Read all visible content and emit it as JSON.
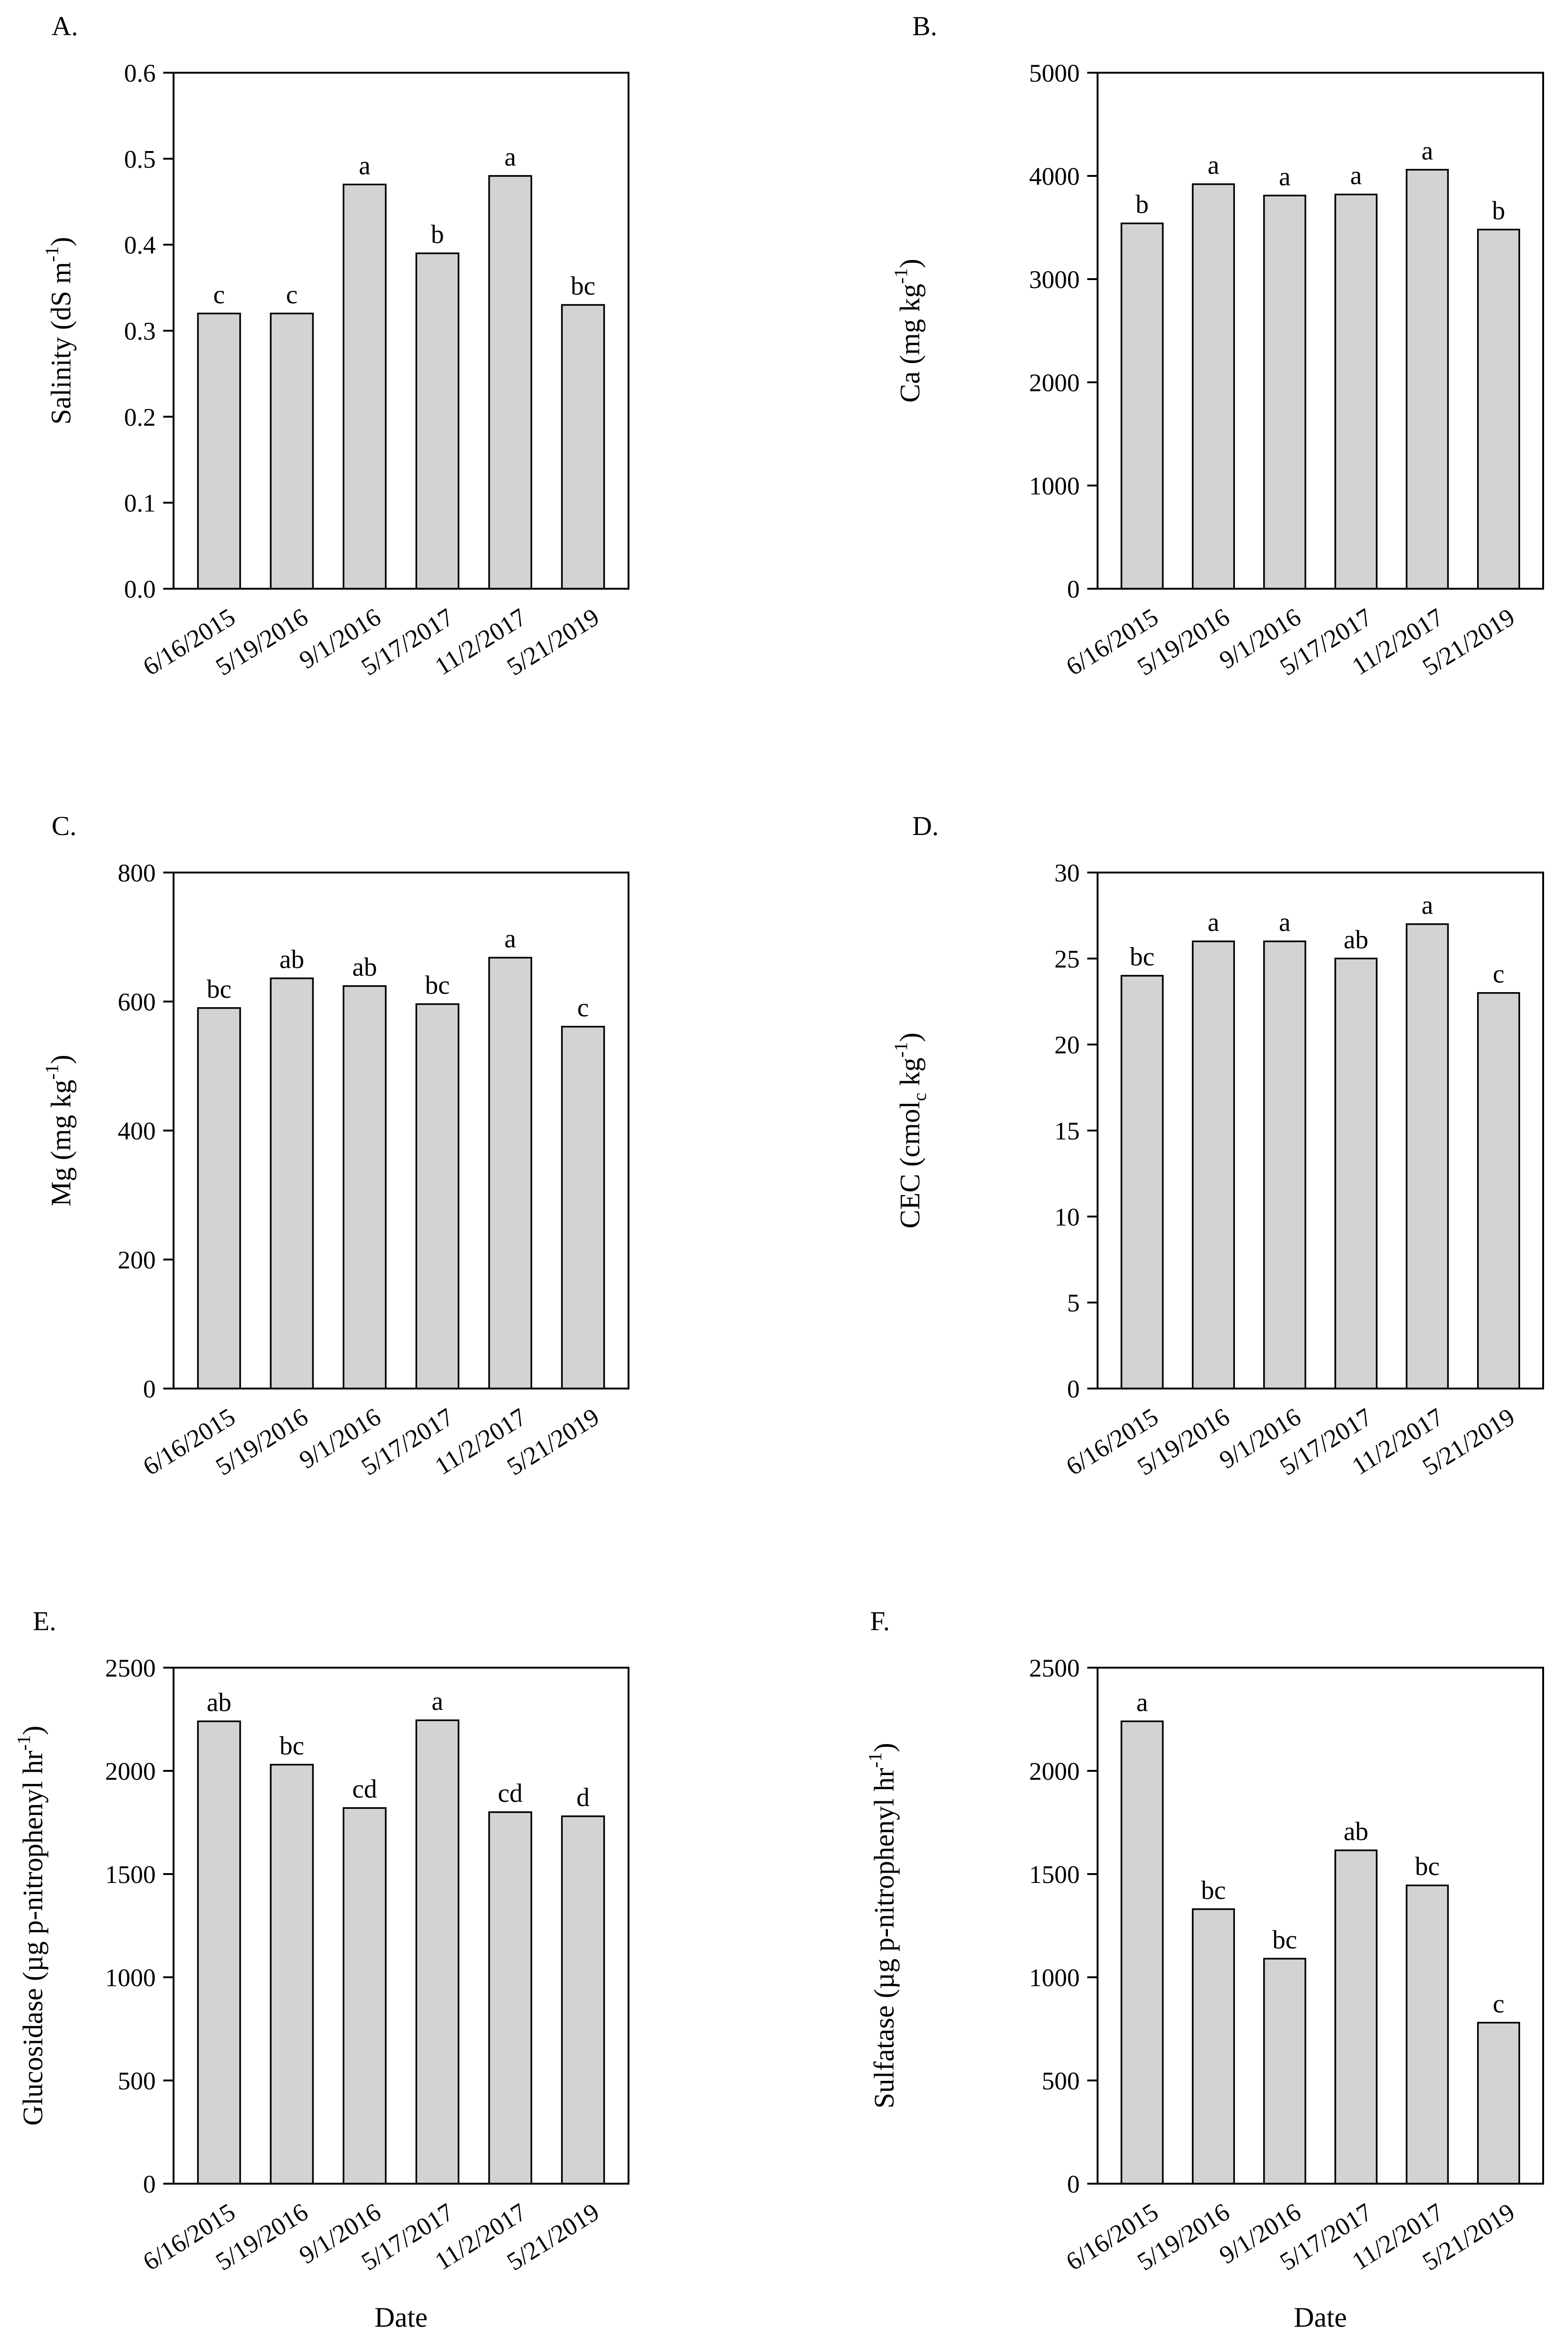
{
  "figure": {
    "bar_color": "#d3d3d3",
    "edge_color": "#000000",
    "background": "#ffffff"
  },
  "chart_data": [
    {
      "type": "bar",
      "panel": "A.",
      "categories": [
        "6/16/2015",
        "5/19/2016",
        "9/1/2016",
        "5/17/2017",
        "11/2/2017",
        "5/21/2019"
      ],
      "values": [
        0.32,
        0.32,
        0.47,
        0.39,
        0.48,
        0.33
      ],
      "letters": [
        "c",
        "c",
        "a",
        "b",
        "a",
        "bc"
      ],
      "ylim": [
        0,
        0.6
      ],
      "yticks": [
        "0.0",
        "0.1",
        "0.2",
        "0.3",
        "0.4",
        "0.5",
        "0.6"
      ],
      "ylabel": "Salinity (dS m",
      "ylabel_sup": "-1",
      "ylabel_end": ")",
      "xlabel": ""
    },
    {
      "type": "bar",
      "panel": "B.",
      "categories": [
        "6/16/2015",
        "5/19/2016",
        "9/1/2016",
        "5/17/2017",
        "11/2/2017",
        "5/21/2019"
      ],
      "values": [
        3540,
        3920,
        3810,
        3820,
        4060,
        3480
      ],
      "letters": [
        "b",
        "a",
        "a",
        "a",
        "a",
        "b"
      ],
      "ylim": [
        0,
        5000
      ],
      "yticks": [
        "0",
        "1000",
        "2000",
        "3000",
        "4000",
        "5000"
      ],
      "ylabel": "Ca (mg kg",
      "ylabel_sup": "-1",
      "ylabel_end": ")",
      "xlabel": ""
    },
    {
      "type": "bar",
      "panel": "C.",
      "categories": [
        "6/16/2015",
        "5/19/2016",
        "9/1/2016",
        "5/17/2017",
        "11/2/2017",
        "5/21/2019"
      ],
      "values": [
        590,
        636,
        624,
        596,
        668,
        561
      ],
      "letters": [
        "bc",
        "ab",
        "ab",
        "bc",
        "a",
        "c"
      ],
      "ylim": [
        0,
        800
      ],
      "yticks": [
        "0",
        "200",
        "400",
        "600",
        "800"
      ],
      "ylabel": "Mg (mg kg",
      "ylabel_sup": "-1",
      "ylabel_end": ")",
      "xlabel": ""
    },
    {
      "type": "bar",
      "panel": "D.",
      "categories": [
        "6/16/2015",
        "5/19/2016",
        "9/1/2016",
        "5/17/2017",
        "11/2/2017",
        "5/21/2019"
      ],
      "values": [
        24,
        26,
        26,
        25,
        27,
        23
      ],
      "letters": [
        "bc",
        "a",
        "a",
        "ab",
        "a",
        "c"
      ],
      "ylim": [
        0,
        30
      ],
      "yticks": [
        "0",
        "5",
        "10",
        "15",
        "20",
        "25",
        "30"
      ],
      "ylabel": "CEC (cmol",
      "ylabel_sub": "c",
      "ylabel_mid": " kg",
      "ylabel_sup": "-1",
      "ylabel_end": ")",
      "xlabel": ""
    },
    {
      "type": "bar",
      "panel": "E.",
      "categories": [
        "6/16/2015",
        "5/19/2016",
        "9/1/2016",
        "5/17/2017",
        "11/2/2017",
        "5/21/2019"
      ],
      "values": [
        2240,
        2030,
        1820,
        2245,
        1800,
        1780
      ],
      "letters": [
        "ab",
        "bc",
        "cd",
        "a",
        "cd",
        "d"
      ],
      "ylim": [
        0,
        2500
      ],
      "yticks": [
        "0",
        "500",
        "1000",
        "1500",
        "2000",
        "2500"
      ],
      "ylabel": "Glucosidase (µg p-nitrophenyl hr",
      "ylabel_sup": "-1",
      "ylabel_end": ")",
      "xlabel": "Date"
    },
    {
      "type": "bar",
      "panel": "F.",
      "categories": [
        "6/16/2015",
        "5/19/2016",
        "9/1/2016",
        "5/17/2017",
        "11/2/2017",
        "5/21/2019"
      ],
      "values": [
        2240,
        1330,
        1090,
        1615,
        1445,
        780
      ],
      "letters": [
        "a",
        "bc",
        "bc",
        "ab",
        "bc",
        "c"
      ],
      "ylim": [
        0,
        2500
      ],
      "yticks": [
        "0",
        "500",
        "1000",
        "1500",
        "2000",
        "2500"
      ],
      "ylabel": "Sulfatase (µg p-nitrophenyl hr",
      "ylabel_sup": "-1",
      "ylabel_end": ")",
      "xlabel": "Date"
    }
  ]
}
